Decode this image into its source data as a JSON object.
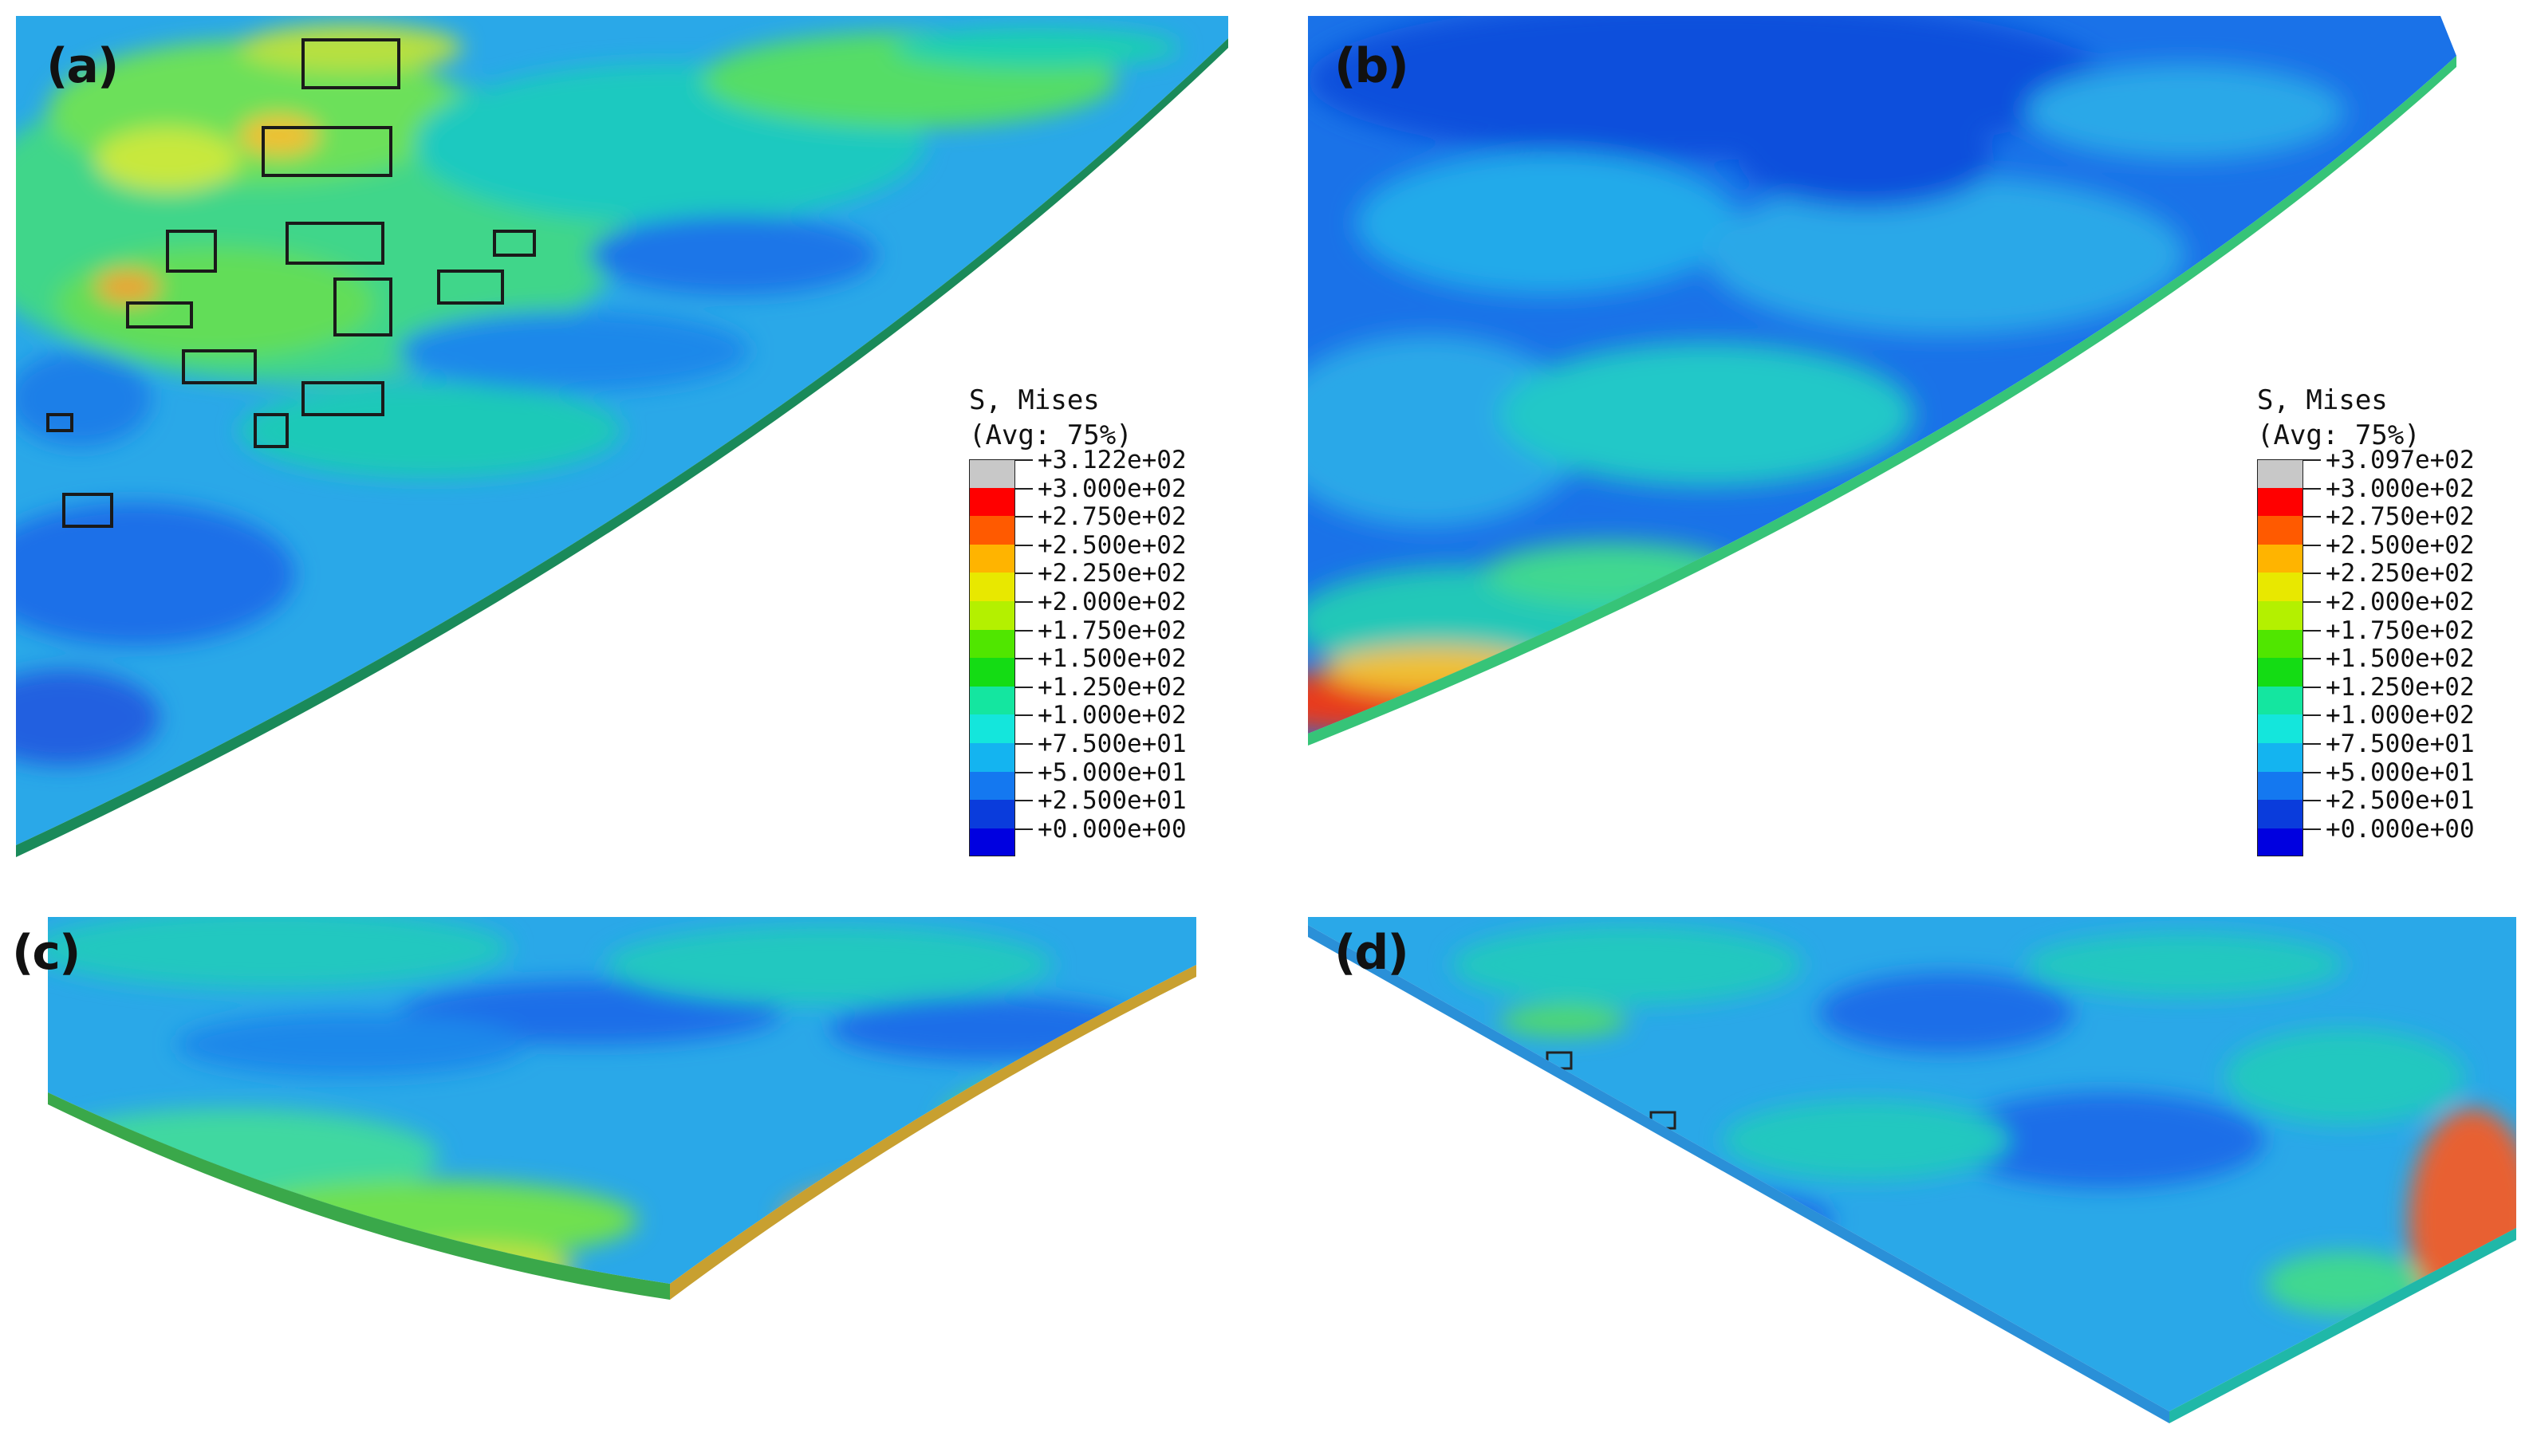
{
  "panels": [
    {
      "id": "a",
      "label": "(a)"
    },
    {
      "id": "b",
      "label": "(b)"
    },
    {
      "id": "c",
      "label": "(c)"
    },
    {
      "id": "d",
      "label": "(d)"
    }
  ],
  "legends": [
    {
      "title_line1": "S, Mises",
      "title_line2": "(Avg: 75%)",
      "ticks": [
        "+3.122e+02",
        "+3.000e+02",
        "+2.750e+02",
        "+2.500e+02",
        "+2.250e+02",
        "+2.000e+02",
        "+1.750e+02",
        "+1.500e+02",
        "+1.250e+02",
        "+1.000e+02",
        "+7.500e+01",
        "+5.000e+01",
        "+2.500e+01",
        "+0.000e+00"
      ]
    },
    {
      "title_line1": "S, Mises",
      "title_line2": "(Avg: 75%)",
      "ticks": [
        "+3.097e+02",
        "+3.000e+02",
        "+2.750e+02",
        "+2.500e+02",
        "+2.250e+02",
        "+2.000e+02",
        "+1.750e+02",
        "+1.500e+02",
        "+1.250e+02",
        "+1.000e+02",
        "+7.500e+01",
        "+5.000e+01",
        "+2.500e+01",
        "+0.000e+00"
      ]
    }
  ],
  "colorbar": [
    "#c8c8c8",
    "#ff0000",
    "#ff5a00",
    "#ffb400",
    "#e8e800",
    "#b4f000",
    "#50e600",
    "#14dc14",
    "#14e6a0",
    "#14e6dc",
    "#14b4f0",
    "#1478f0",
    "#0a3cdc",
    "#0000e0"
  ]
}
